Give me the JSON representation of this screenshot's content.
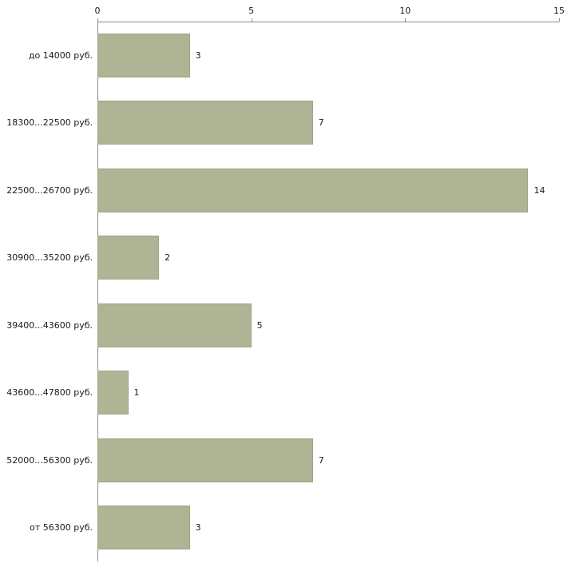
{
  "chart_data": {
    "type": "bar",
    "orientation": "horizontal",
    "title": "",
    "categories": [
      "до 14000 руб.",
      "18300...22500 руб.",
      "22500...26700 руб.",
      "30900...35200 руб.",
      "39400...43600 руб.",
      "43600...47800 руб.",
      "52000...56300 руб.",
      "от 56300 руб."
    ],
    "values": [
      3,
      7,
      14,
      2,
      5,
      1,
      7,
      3
    ],
    "value_labels": [
      "3",
      "7",
      "14",
      "2",
      "5",
      "1",
      "7",
      "3"
    ],
    "xlim": [
      0,
      15
    ],
    "xticks": [
      "0",
      "5",
      "10",
      "15"
    ],
    "grid": false,
    "legend": false,
    "bar_color": "#afb494",
    "bar_border_color": "#9fa483",
    "axis_color": "#8c8c8c",
    "text_color": "#1a1a1a"
  }
}
